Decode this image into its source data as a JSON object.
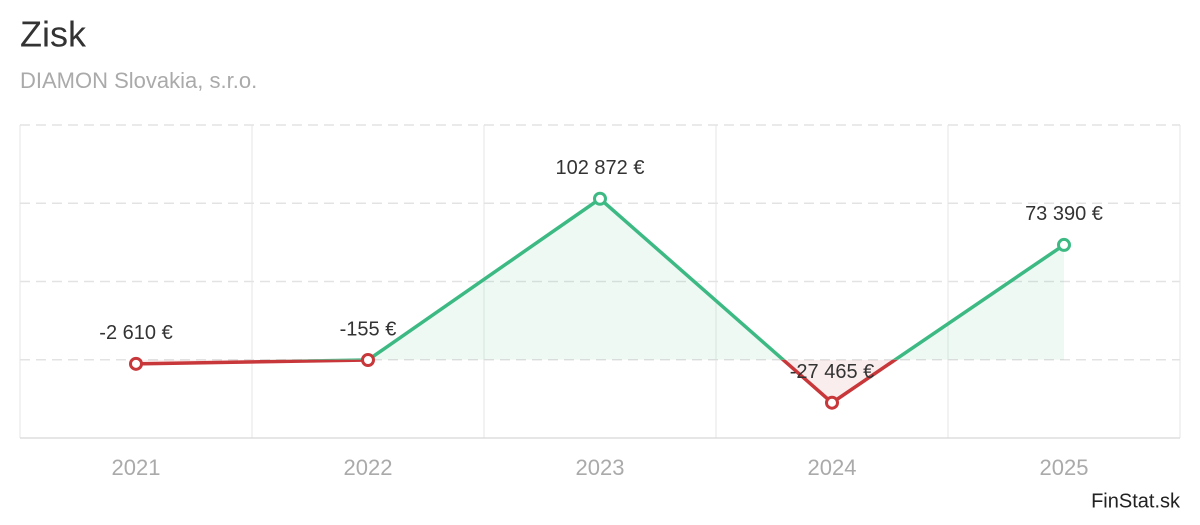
{
  "chart_data": {
    "type": "line",
    "title": "Zisk",
    "subtitle": "DIAMON Slovakia, s.r.o.",
    "source": "FinStat.sk",
    "categories": [
      "2021",
      "2022",
      "2023",
      "2024",
      "2025"
    ],
    "values": [
      -2610,
      -155,
      102872,
      -27465,
      73390
    ],
    "value_labels": [
      "-2 610 €",
      "-155 €",
      "102 872 €",
      "-27 465 €",
      "73 390 €"
    ],
    "positive_color": "#3dba84",
    "negative_color": "#c8373a",
    "ylim": [
      -50000,
      150000
    ],
    "yticks": [
      -50000,
      0,
      50000,
      100000,
      150000
    ],
    "grid": true
  }
}
